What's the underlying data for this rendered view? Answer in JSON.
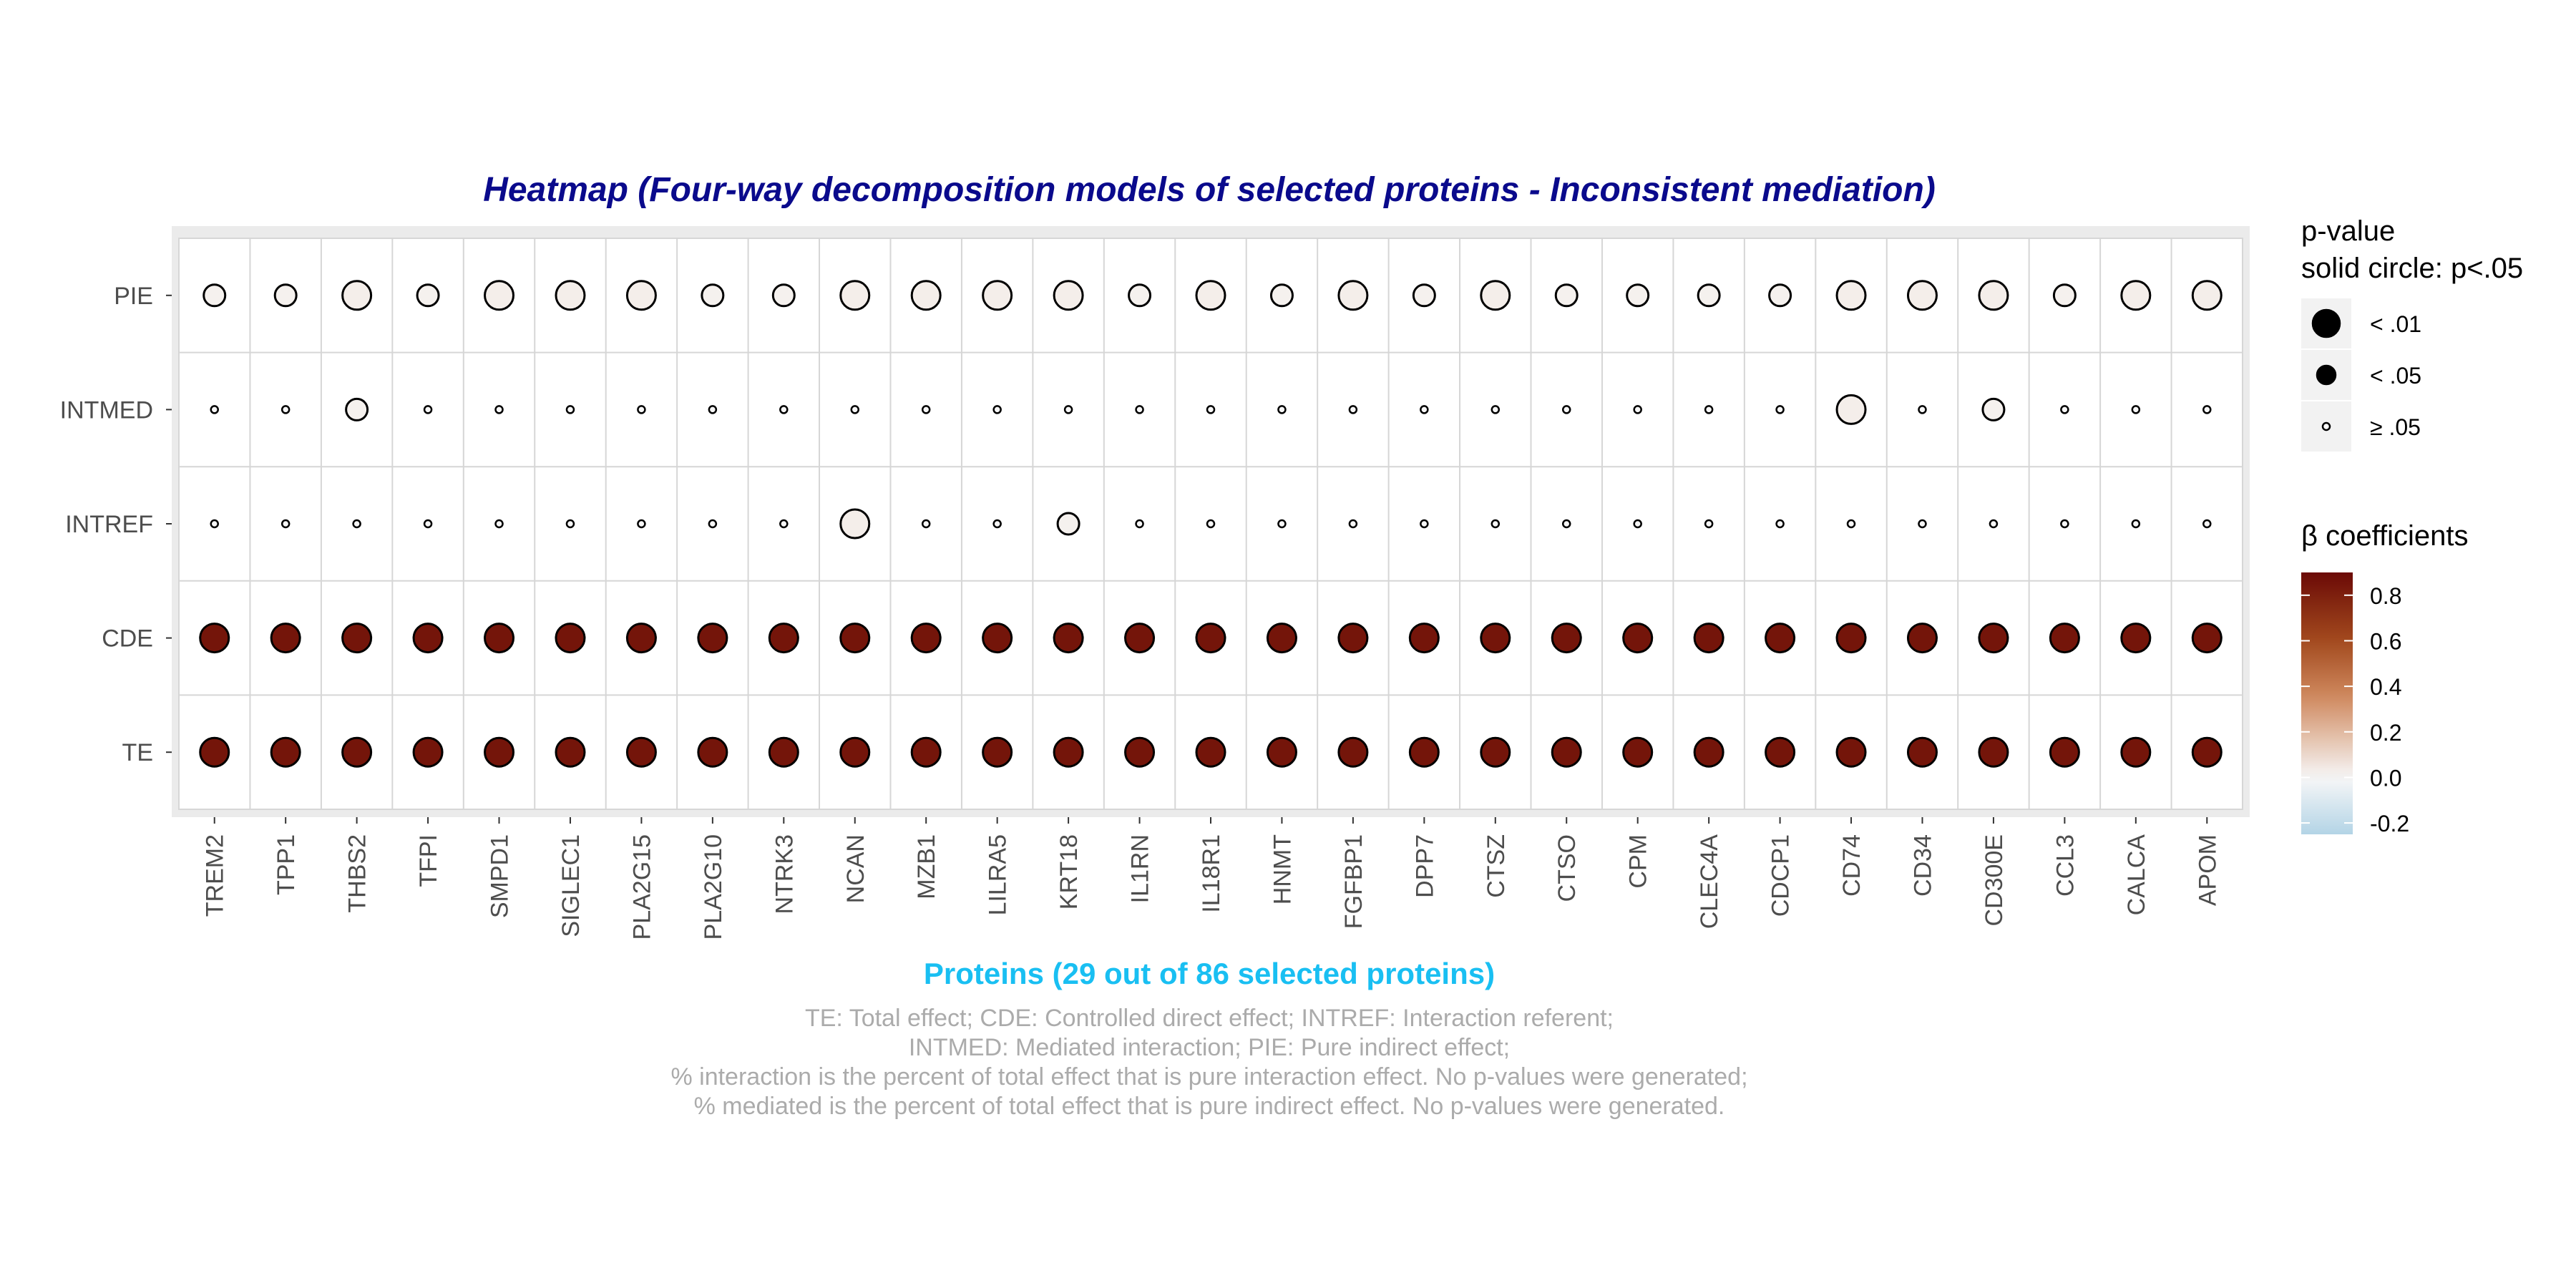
{
  "chart_data": {
    "type": "heatmap",
    "title": "Heatmap (Four-way decomposition models of selected proteins - Inconsistent mediation)",
    "xlabel": "Proteins (29 out of 86 selected proteins)",
    "ylabel": "",
    "rows": [
      "PIE",
      "INTMED",
      "INTREF",
      "CDE",
      "TE"
    ],
    "columns": [
      "TREM2",
      "TPP1",
      "THBS2",
      "TFPI",
      "SMPD1",
      "SIGLEC1",
      "PLA2G15",
      "PLA2G10",
      "NTRK3",
      "NCAN",
      "MZB1",
      "LILRA5",
      "KRT18",
      "IL1RN",
      "IL18R1",
      "HNMT",
      "FGFBP1",
      "DPP7",
      "CTSZ",
      "CTSO",
      "CPM",
      "CLEC4A",
      "CDCP1",
      "CD74",
      "CD34",
      "CD300E",
      "CCL3",
      "CALCA",
      "APOM"
    ],
    "size_legend": {
      "title_line1": "p-value",
      "title_line2": "solid circle: p<.05",
      "levels": [
        "< .01",
        "< .05",
        "≥ .05"
      ]
    },
    "color_legend": {
      "title": "β coefficients",
      "ticks": [
        "0.8",
        "0.6",
        "0.4",
        "0.2",
        "0.0",
        "-0.2"
      ],
      "range": [
        -0.25,
        0.9
      ],
      "colors": [
        "#b3d4e6",
        "#f7f7f7",
        "#d08a60",
        "#a34a1e",
        "#6b0a06"
      ]
    },
    "caption": [
      "TE: Total effect; CDE: Controlled direct effect; INTREF: Interaction referent;",
      "INTMED: Mediated interaction; PIE: Pure indirect effect;",
      "% interaction is the percent of total effect that is pure interaction effect. No p-values were generated;",
      "% mediated is the percent of total effect that is pure indirect effect. No p-values were generated."
    ],
    "series": [
      {
        "row": "PIE",
        "beta": [
          0.02,
          0.02,
          0.03,
          0.02,
          0.03,
          0.03,
          0.03,
          0.02,
          0.02,
          0.03,
          0.03,
          0.03,
          0.03,
          0.02,
          0.03,
          0.02,
          0.03,
          0.02,
          0.03,
          0.02,
          0.02,
          0.02,
          0.02,
          0.03,
          0.03,
          0.03,
          0.02,
          0.03,
          0.03
        ],
        "pclass": [
          1,
          1,
          2,
          1,
          2,
          2,
          2,
          1,
          1,
          2,
          2,
          2,
          2,
          1,
          2,
          1,
          2,
          1,
          2,
          1,
          1,
          1,
          1,
          2,
          2,
          2,
          1,
          2,
          2
        ]
      },
      {
        "row": "INTMED",
        "beta": [
          0.0,
          0.0,
          0.02,
          0.0,
          0.0,
          0.0,
          0.0,
          0.0,
          0.0,
          0.0,
          0.0,
          0.0,
          0.0,
          0.0,
          0.0,
          0.0,
          0.0,
          0.0,
          0.0,
          0.0,
          0.0,
          0.0,
          0.0,
          0.03,
          0.0,
          0.02,
          0.0,
          0.0,
          0.0
        ],
        "pclass": [
          0,
          0,
          1,
          0,
          0,
          0,
          0,
          0,
          0,
          0,
          0,
          0,
          0,
          0,
          0,
          0,
          0,
          0,
          0,
          0,
          0,
          0,
          0,
          2,
          0,
          1,
          0,
          0,
          0
        ]
      },
      {
        "row": "INTREF",
        "beta": [
          0.0,
          0.0,
          0.0,
          0.0,
          0.0,
          0.0,
          0.0,
          0.0,
          0.0,
          0.03,
          0.0,
          0.0,
          0.02,
          0.0,
          0.0,
          0.0,
          0.0,
          0.0,
          0.0,
          0.0,
          0.0,
          0.0,
          0.0,
          0.0,
          0.0,
          0.0,
          0.0,
          0.0,
          0.0
        ],
        "pclass": [
          0,
          0,
          0,
          0,
          0,
          0,
          0,
          0,
          0,
          2,
          0,
          0,
          1,
          0,
          0,
          0,
          0,
          0,
          0,
          0,
          0,
          0,
          0,
          0,
          0,
          0,
          0,
          0,
          0
        ]
      },
      {
        "row": "CDE",
        "beta": [
          0.85,
          0.85,
          0.85,
          0.85,
          0.85,
          0.85,
          0.85,
          0.85,
          0.85,
          0.85,
          0.85,
          0.85,
          0.85,
          0.85,
          0.85,
          0.85,
          0.85,
          0.85,
          0.85,
          0.85,
          0.85,
          0.85,
          0.85,
          0.85,
          0.85,
          0.85,
          0.85,
          0.85,
          0.85
        ],
        "pclass": [
          2,
          2,
          2,
          2,
          2,
          2,
          2,
          2,
          2,
          2,
          2,
          2,
          2,
          2,
          2,
          2,
          2,
          2,
          2,
          2,
          2,
          2,
          2,
          2,
          2,
          2,
          2,
          2,
          2
        ]
      },
      {
        "row": "TE",
        "beta": [
          0.85,
          0.85,
          0.85,
          0.85,
          0.85,
          0.85,
          0.85,
          0.85,
          0.85,
          0.85,
          0.85,
          0.85,
          0.85,
          0.85,
          0.85,
          0.85,
          0.85,
          0.85,
          0.85,
          0.85,
          0.85,
          0.85,
          0.85,
          0.85,
          0.85,
          0.85,
          0.85,
          0.85,
          0.85
        ],
        "pclass": [
          2,
          2,
          2,
          2,
          2,
          2,
          2,
          2,
          2,
          2,
          2,
          2,
          2,
          2,
          2,
          2,
          2,
          2,
          2,
          2,
          2,
          2,
          2,
          2,
          2,
          2,
          2,
          2,
          2
        ]
      }
    ]
  }
}
